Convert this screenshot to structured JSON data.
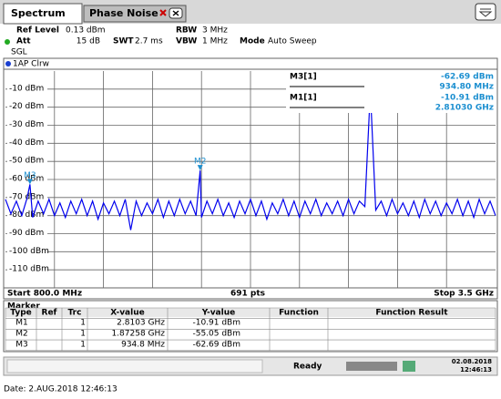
{
  "tabs": [
    "Spectrum",
    "Phase Noise"
  ],
  "settings": {
    "ref_level_label": "Ref Level",
    "ref_level": "0.13 dBm",
    "att_label": "Att",
    "att": "15 dB",
    "swt_label": "SWT",
    "swt": "2.7 ms",
    "rbw_label": "RBW",
    "rbw": "3 MHz",
    "vbw_label": "VBW",
    "vbw": "1 MHz",
    "mode_label": "Mode",
    "mode": "Auto Sweep",
    "sgl": "SGL"
  },
  "chart_data": {
    "type": "line",
    "trace_label": "1AP Clrw",
    "x": [
      800,
      830,
      860,
      890,
      920,
      934.8,
      950,
      980,
      1010,
      1040,
      1070,
      1100,
      1130,
      1160,
      1190,
      1220,
      1250,
      1280,
      1310,
      1340,
      1370,
      1400,
      1430,
      1460,
      1490,
      1520,
      1550,
      1580,
      1610,
      1640,
      1670,
      1700,
      1730,
      1760,
      1790,
      1820,
      1850,
      1872.58,
      1880,
      1910,
      1940,
      1970,
      2000,
      2030,
      2060,
      2090,
      2120,
      2150,
      2180,
      2210,
      2240,
      2270,
      2300,
      2330,
      2360,
      2390,
      2420,
      2450,
      2480,
      2510,
      2540,
      2570,
      2600,
      2630,
      2660,
      2690,
      2720,
      2750,
      2780,
      2810.3,
      2840,
      2870,
      2900,
      2930,
      2960,
      2990,
      3020,
      3050,
      3080,
      3110,
      3140,
      3170,
      3200,
      3230,
      3260,
      3290,
      3320,
      3350,
      3380,
      3410,
      3440,
      3470,
      3500
    ],
    "series": [
      {
        "name": "1AP Clrw",
        "color": "#0000ee",
        "values": [
          -71,
          -79,
          -72,
          -80,
          -70,
          -62.69,
          -81,
          -72,
          -79,
          -71,
          -80,
          -73,
          -81,
          -72,
          -79,
          -71,
          -80,
          -72,
          -82,
          -73,
          -79,
          -72,
          -80,
          -71,
          -88,
          -72,
          -80,
          -73,
          -79,
          -71,
          -81,
          -72,
          -80,
          -71,
          -79,
          -72,
          -80,
          -55.05,
          -81,
          -72,
          -79,
          -71,
          -80,
          -73,
          -81,
          -72,
          -79,
          -71,
          -80,
          -72,
          -82,
          -73,
          -79,
          -71,
          -80,
          -72,
          -81,
          -72,
          -79,
          -71,
          -80,
          -73,
          -79,
          -72,
          -80,
          -71,
          -79,
          -72,
          -75,
          -10.91,
          -77,
          -72,
          -80,
          -71,
          -79,
          -73,
          -80,
          -72,
          -81,
          -71,
          -79,
          -72,
          -80,
          -73,
          -79,
          -71,
          -80,
          -72,
          -81,
          -71,
          -79,
          -72,
          -80
        ]
      }
    ],
    "xlim": [
      800,
      3500
    ],
    "ylim": [
      -120,
      0
    ],
    "yticks": [
      {
        "value": -10,
        "label": "-10 dBm"
      },
      {
        "value": -20,
        "label": "-20 dBm"
      },
      {
        "value": -30,
        "label": "-30 dBm"
      },
      {
        "value": -40,
        "label": "-40 dBm"
      },
      {
        "value": -50,
        "label": "-50 dBm"
      },
      {
        "value": -60,
        "label": "-60 dBm"
      },
      {
        "value": -70,
        "label": "-70 dBm"
      },
      {
        "value": -80,
        "label": "-80 dBm"
      },
      {
        "value": -90,
        "label": "-90 dBm"
      },
      {
        "value": -100,
        "label": "-100 dBm"
      },
      {
        "value": -110,
        "label": "-110 dBm"
      }
    ],
    "grid": true,
    "start_label": "Start 800.0 MHz",
    "points_label": "691 pts",
    "stop_label": "Stop 3.5 GHz",
    "markers": [
      {
        "label": "M1",
        "x": 2810.3,
        "y": -10.91
      },
      {
        "label": "M2",
        "x": 1872.58,
        "y": -55.05
      },
      {
        "label": "M3",
        "x": 934.8,
        "y": -62.69
      }
    ],
    "marker_readout": [
      {
        "name": "M3[1]",
        "y": "-62.69 dBm",
        "x": "934.80 MHz"
      },
      {
        "name": "M1[1]",
        "y": "-10.91 dBm",
        "x": "2.81030 GHz"
      }
    ]
  },
  "marker_table": {
    "title": "Marker",
    "header": [
      "Type",
      "Ref",
      "Trc",
      "X-value",
      "Y-value",
      "Function",
      "Function Result"
    ],
    "rows": [
      {
        "type": "M1",
        "trc": "1",
        "x_value": "2.8103 GHz",
        "y_value": "-10.91 dBm"
      },
      {
        "type": "M2",
        "trc": "1",
        "x_value": "1.87258 GHz",
        "y_value": "-55.05 dBm"
      },
      {
        "type": "M3",
        "trc": "1",
        "x_value": "934.8 MHz",
        "y_value": "-62.69 dBm"
      }
    ]
  },
  "status": {
    "ready": "Ready",
    "date": "02.08.2018",
    "time": "12:46:13"
  },
  "footer": "Date: 2.AUG.2018  12:46:13"
}
